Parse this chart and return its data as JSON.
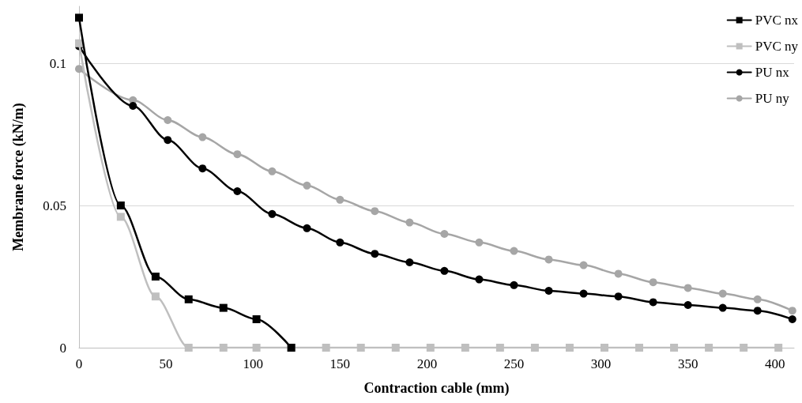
{
  "chart_data": {
    "type": "line",
    "xlabel": "Contraction cable (mm)",
    "ylabel": "Membrane force (kN/m)",
    "xlim": [
      0,
      411
    ],
    "xticks": [
      0,
      50,
      100,
      150,
      200,
      250,
      300,
      350,
      400
    ],
    "ylim": [
      0,
      0.12
    ],
    "yticks": [
      0,
      0.05,
      0.1
    ],
    "grid": "y",
    "legend": "top right",
    "line_style": "solid",
    "series": [
      {
        "name": "PVC nx",
        "color": "#000000",
        "marker": "square",
        "x": [
          0,
          24,
          44,
          63,
          83,
          102,
          122
        ],
        "values": [
          0.116,
          0.05,
          0.025,
          0.017,
          0.014,
          0.01,
          0
        ]
      },
      {
        "name": "PVC ny",
        "color": "#bfbfbf",
        "marker": "square",
        "x": [
          0,
          24,
          44,
          63,
          83,
          102,
          122,
          142,
          162,
          182,
          202,
          222,
          242,
          262,
          282,
          302,
          322,
          342,
          362,
          382,
          402
        ],
        "values": [
          0.107,
          0.046,
          0.018,
          0,
          0,
          0,
          0,
          0,
          0,
          0,
          0,
          0,
          0,
          0,
          0,
          0,
          0,
          0,
          0,
          0,
          0
        ]
      },
      {
        "name": "PU nx",
        "color": "#000000",
        "marker": "circle",
        "x": [
          0,
          31,
          51,
          71,
          91,
          111,
          131,
          150,
          170,
          190,
          210,
          230,
          250,
          270,
          290,
          310,
          330,
          350,
          370,
          390,
          410
        ],
        "values": [
          0.106,
          0.085,
          0.073,
          0.063,
          0.055,
          0.047,
          0.042,
          0.037,
          0.033,
          0.03,
          0.027,
          0.024,
          0.022,
          0.02,
          0.019,
          0.018,
          0.016,
          0.015,
          0.014,
          0.013,
          0.01
        ]
      },
      {
        "name": "PU ny",
        "color": "#a6a6a6",
        "marker": "circle",
        "x": [
          0,
          31,
          51,
          71,
          91,
          111,
          131,
          150,
          170,
          190,
          210,
          230,
          250,
          270,
          290,
          310,
          330,
          350,
          370,
          390,
          410
        ],
        "values": [
          0.098,
          0.087,
          0.08,
          0.074,
          0.068,
          0.062,
          0.057,
          0.052,
          0.048,
          0.044,
          0.04,
          0.037,
          0.034,
          0.031,
          0.029,
          0.026,
          0.023,
          0.021,
          0.019,
          0.017,
          0.013
        ]
      }
    ]
  }
}
